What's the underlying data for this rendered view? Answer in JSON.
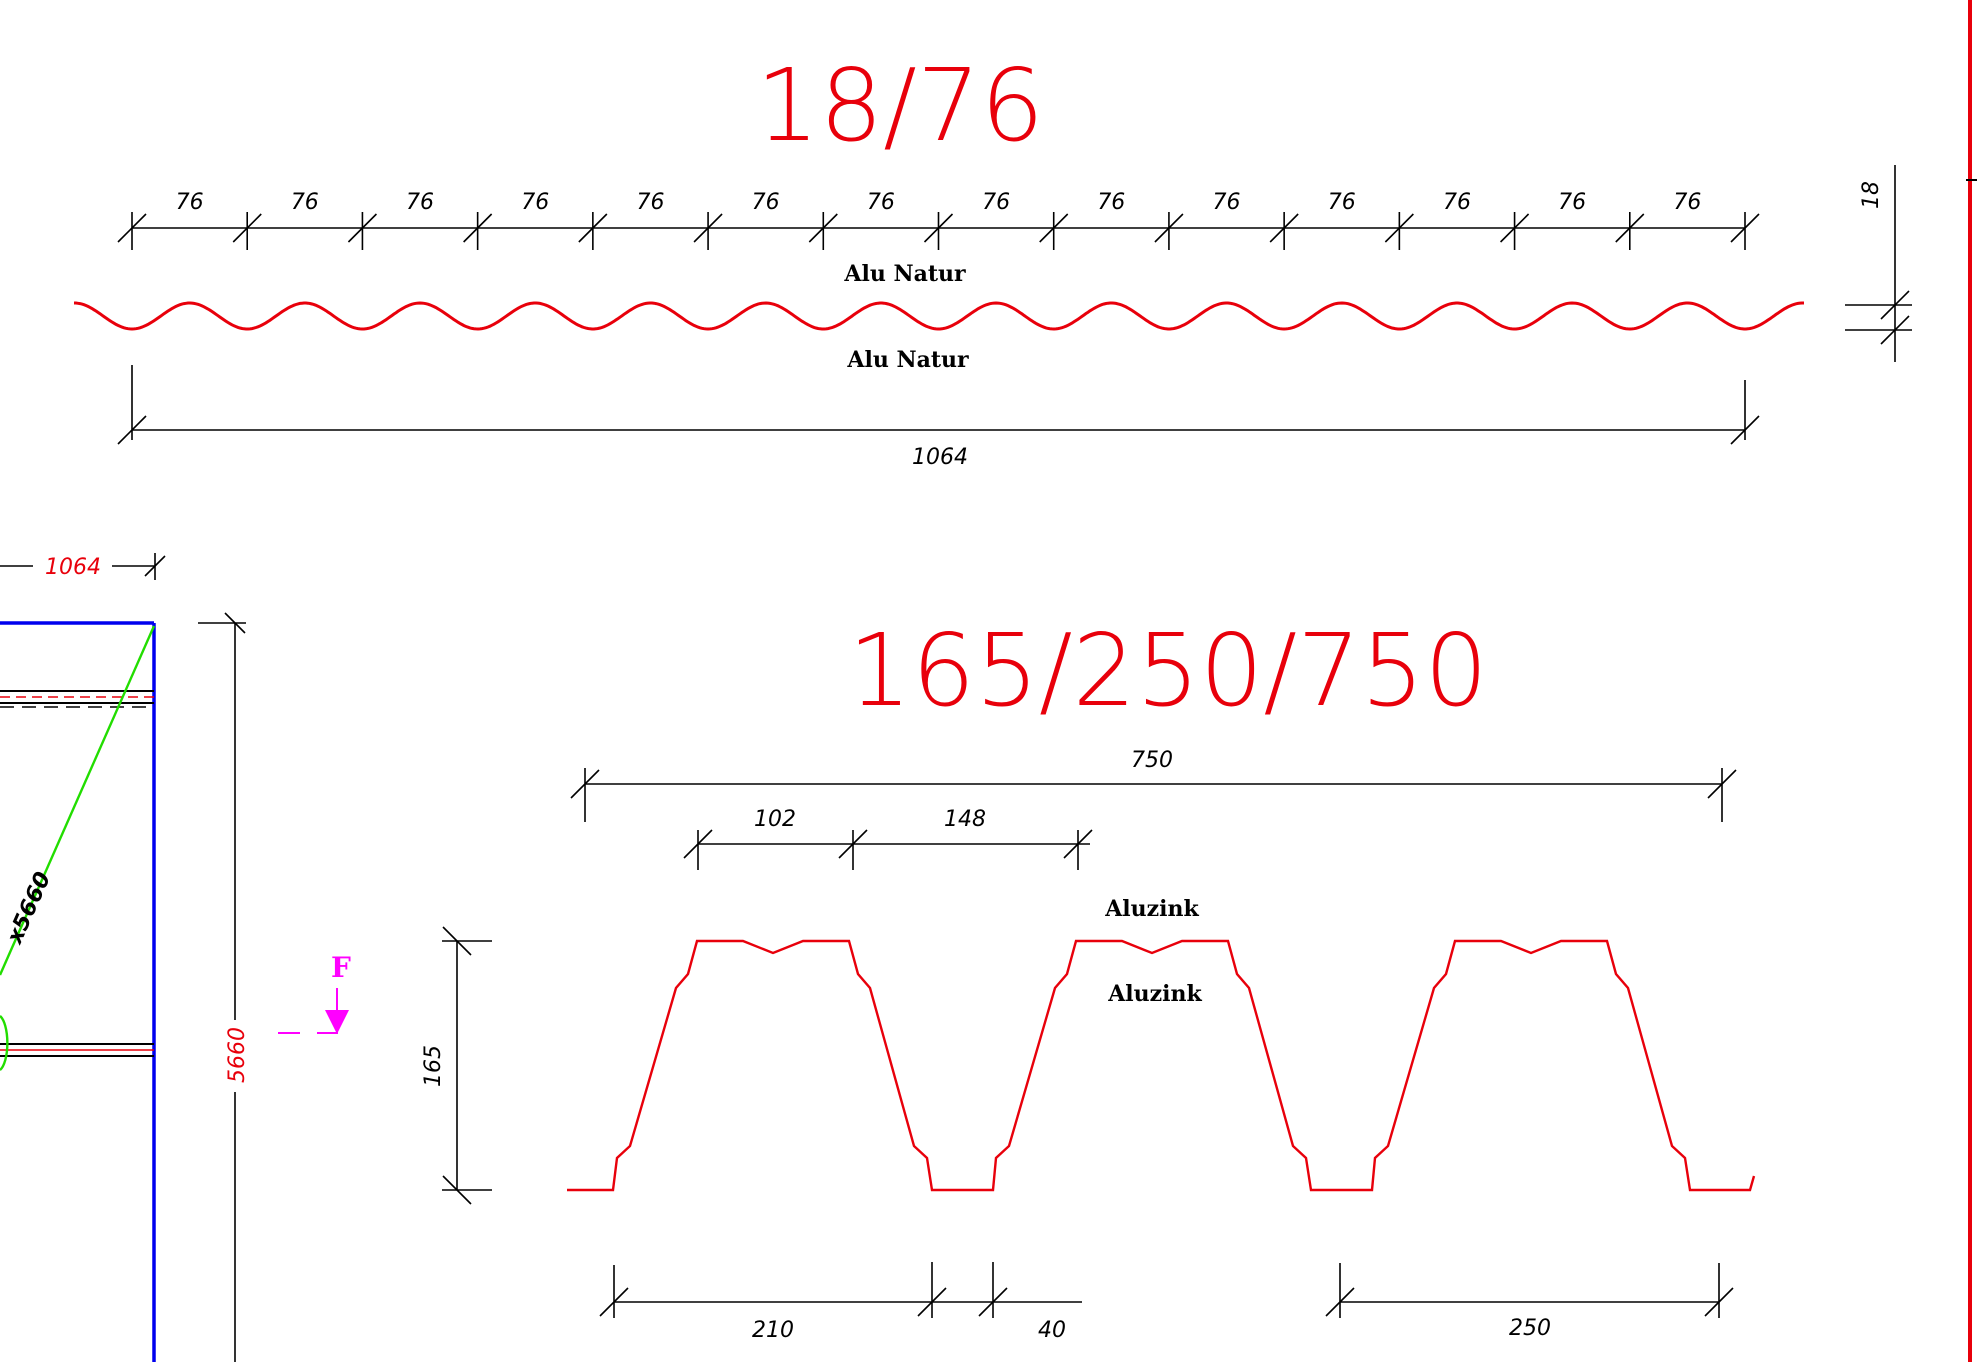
{
  "profile1": {
    "title": "18/76",
    "pitch_label": "76",
    "pitch_count": 14,
    "height_label": "18",
    "width_label": "1064",
    "material_top": "Alu Natur",
    "material_bottom": "Alu Natur"
  },
  "profile2": {
    "title": "165/250/750",
    "width_label": "750",
    "top_a_label": "102",
    "top_b_label": "148",
    "height_label": "165",
    "bottom_a_label": "210",
    "bottom_b_label": "40",
    "bottom_c_label": "250",
    "material_top": "Aluzink",
    "material_bottom": "Aluzink"
  },
  "left_panel": {
    "width_label": "1064",
    "height_label": "5660",
    "diagonal_label": "x5660",
    "force_label": "F"
  },
  "colors": {
    "profile": "#e8000b",
    "dimension": "#000000",
    "frame": "#0000ee",
    "diagonal": "#22dd00",
    "force": "#ff00ff"
  }
}
